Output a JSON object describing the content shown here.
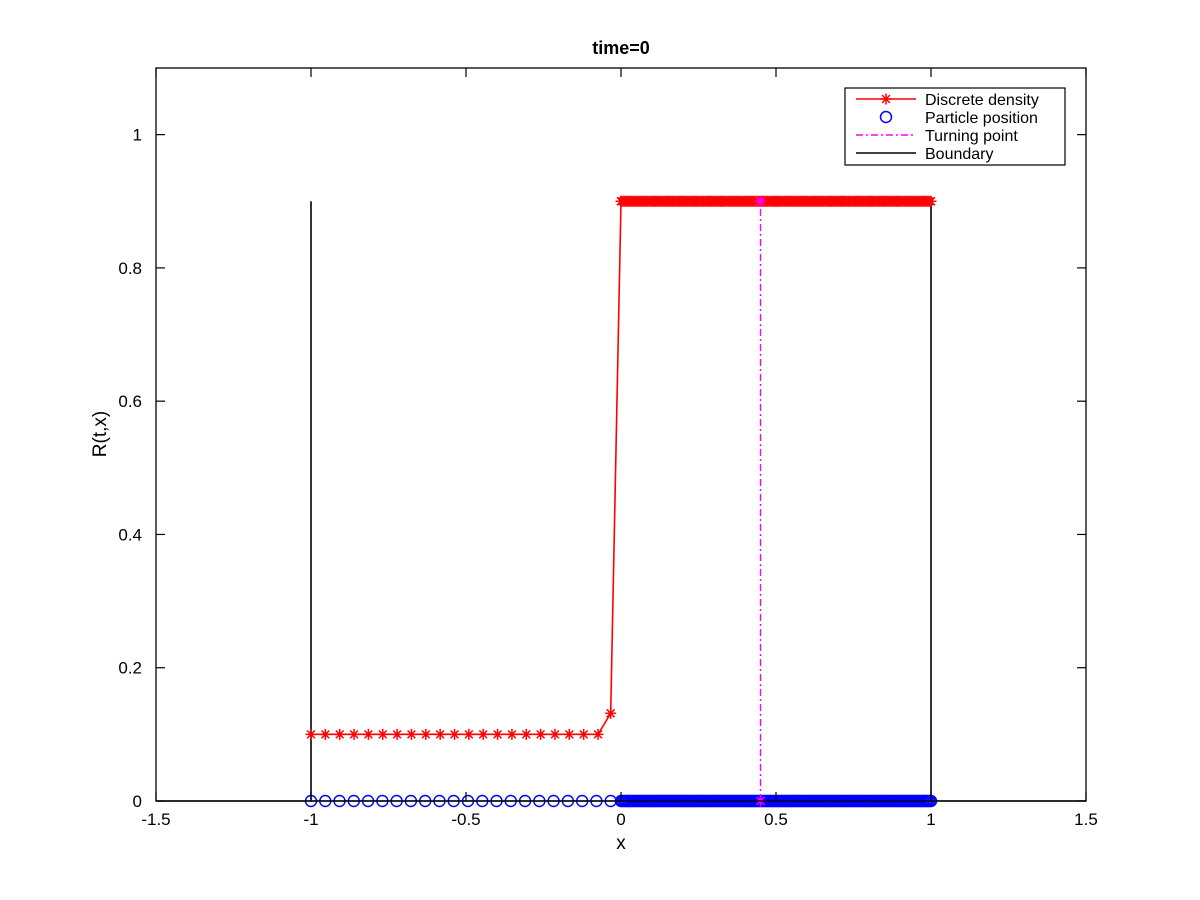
{
  "chart_data": {
    "type": "line",
    "title": "time=0",
    "xlabel": "x",
    "ylabel": "R(t,x)",
    "xlim": [
      -1.5,
      1.5
    ],
    "ylim": [
      0,
      1.1
    ],
    "xticks": [
      "-1.5",
      "-1",
      "-0.5",
      "0",
      "0.5",
      "1",
      "1.5"
    ],
    "xtick_values": [
      -1.5,
      -1,
      -0.5,
      0,
      0.5,
      1,
      1.5
    ],
    "yticks": [
      "0",
      "0.2",
      "0.4",
      "0.6",
      "0.8",
      "1"
    ],
    "ytick_values": [
      0,
      0.2,
      0.4,
      0.6,
      0.8,
      1
    ],
    "grid": false,
    "legend_position": "top-right",
    "series": [
      {
        "name": "Discrete density",
        "style": "solid line with star markers",
        "color": "#ff0000",
        "segments": [
          {
            "x_start": -1.0,
            "x_end": -0.0741,
            "count": 21,
            "y": 0.1
          },
          {
            "x": [
              -0.0333,
              0.0
            ],
            "y": [
              0.1316,
              0.9
            ]
          },
          {
            "x_start": 0.0,
            "x_end": 1.0,
            "count": 200,
            "y": 0.9
          }
        ]
      },
      {
        "name": "Particle position",
        "style": "open circle markers",
        "color": "#0000ff",
        "segments": [
          {
            "x_start": -1.0,
            "x_end": -0.0333,
            "count": 22,
            "y": 0
          },
          {
            "x_start": 0.0,
            "x_end": 1.0,
            "count": 200,
            "y": 0
          }
        ]
      },
      {
        "name": "Turning point",
        "style": "dash-dot line with star markers",
        "color": "#ff00ff",
        "x": [
          0.45,
          0.45
        ],
        "y": [
          0,
          0.9
        ]
      },
      {
        "name": "Boundary",
        "style": "solid line",
        "color": "#000000",
        "lines": [
          {
            "x": [
              -1,
              -1
            ],
            "y": [
              0,
              0.9
            ]
          },
          {
            "x": [
              1,
              1
            ],
            "y": [
              0,
              0.9
            ]
          },
          {
            "x": [
              -1.5,
              1.5
            ],
            "y": [
              0,
              0
            ]
          }
        ]
      }
    ]
  }
}
